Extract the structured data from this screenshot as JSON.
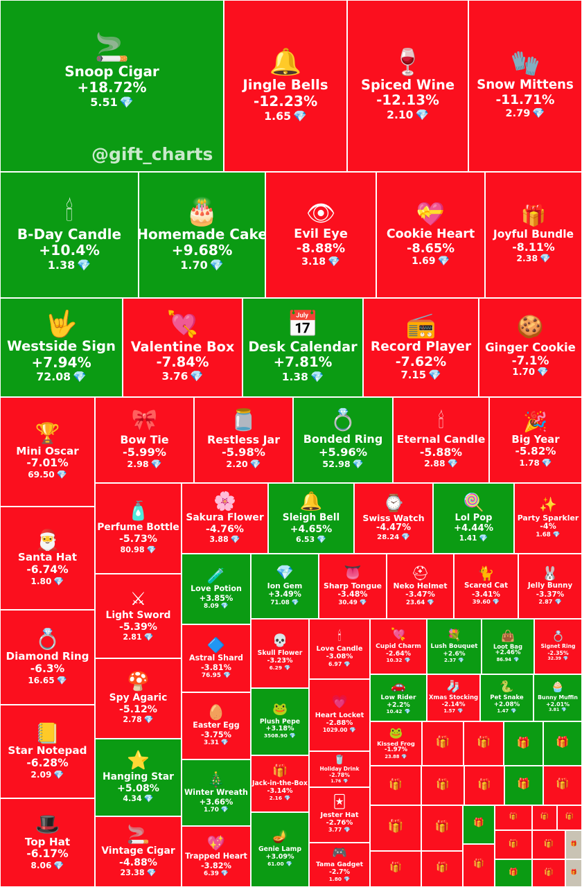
{
  "watermark": "@gift_charts",
  "colors": {
    "gain": "#0b9b13",
    "loss": "#fb0f1e"
  },
  "currency_icon": "diamond-icon",
  "chart_data": {
    "type": "treemap",
    "items": [
      {
        "name": "Snoop Cigar",
        "change": "+18.72%",
        "change_value": 18.72,
        "price": "5.51",
        "icon": "cigar-icon"
      },
      {
        "name": "Jingle Bells",
        "change": "-12.23%",
        "change_value": -12.23,
        "price": "1.65",
        "icon": "bells-icon"
      },
      {
        "name": "Spiced Wine",
        "change": "-12.13%",
        "change_value": -12.13,
        "price": "2.10",
        "icon": "wine-icon"
      },
      {
        "name": "Snow Mittens",
        "change": "-11.71%",
        "change_value": -11.71,
        "price": "2.79",
        "icon": "mittens-icon"
      },
      {
        "name": "B-Day Candle",
        "change": "+10.4%",
        "change_value": 10.4,
        "price": "1.38",
        "icon": "bday-candle-icon"
      },
      {
        "name": "Homemade Cake",
        "change": "+9.68%",
        "change_value": 9.68,
        "price": "1.70",
        "icon": "cake-icon"
      },
      {
        "name": "Evil Eye",
        "change": "-8.88%",
        "change_value": -8.88,
        "price": "3.18",
        "icon": "eye-icon"
      },
      {
        "name": "Cookie Heart",
        "change": "-8.65%",
        "change_value": -8.65,
        "price": "1.69",
        "icon": "cookie-heart-icon"
      },
      {
        "name": "Joyful Bundle",
        "change": "-8.11%",
        "change_value": -8.11,
        "price": "2.38",
        "icon": "bundle-icon"
      },
      {
        "name": "Westside Sign",
        "change": "+7.94%",
        "change_value": 7.94,
        "price": "72.08",
        "icon": "hand-sign-icon"
      },
      {
        "name": "Valentine Box",
        "change": "-7.84%",
        "change_value": -7.84,
        "price": "3.76",
        "icon": "valentine-box-icon"
      },
      {
        "name": "Desk Calendar",
        "change": "+7.81%",
        "change_value": 7.81,
        "price": "1.38",
        "icon": "calendar-icon"
      },
      {
        "name": "Record Player",
        "change": "-7.62%",
        "change_value": -7.62,
        "price": "7.15",
        "icon": "record-player-icon"
      },
      {
        "name": "Ginger Cookie",
        "change": "-7.1%",
        "change_value": -7.1,
        "price": "1.70",
        "icon": "ginger-cookie-icon"
      },
      {
        "name": "Mini Oscar",
        "change": "-7.01%",
        "change_value": -7.01,
        "price": "69.50",
        "icon": "trophy-icon"
      },
      {
        "name": "Bow Tie",
        "change": "-5.99%",
        "change_value": -5.99,
        "price": "2.98",
        "icon": "bow-tie-icon"
      },
      {
        "name": "Restless Jar",
        "change": "-5.98%",
        "change_value": -5.98,
        "price": "2.20",
        "icon": "jar-icon"
      },
      {
        "name": "Bonded Ring",
        "change": "+5.96%",
        "change_value": 5.96,
        "price": "52.98",
        "icon": "ring-icon"
      },
      {
        "name": "Eternal Candle",
        "change": "-5.88%",
        "change_value": -5.88,
        "price": "2.88",
        "icon": "candle-icon"
      },
      {
        "name": "Big Year",
        "change": "-5.82%",
        "change_value": -5.82,
        "price": "1.78",
        "icon": "big-year-icon"
      },
      {
        "name": "Santa Hat",
        "change": "-6.74%",
        "change_value": -6.74,
        "price": "1.80",
        "icon": "santa-hat-icon"
      },
      {
        "name": "Perfume Bottle",
        "change": "-5.73%",
        "change_value": -5.73,
        "price": "80.98",
        "icon": "perfume-icon"
      },
      {
        "name": "Sakura Flower",
        "change": "-4.76%",
        "change_value": -4.76,
        "price": "3.88",
        "icon": "flower-icon"
      },
      {
        "name": "Sleigh Bell",
        "change": "+4.65%",
        "change_value": 4.65,
        "price": "6.53",
        "icon": "bell-icon"
      },
      {
        "name": "Swiss Watch",
        "change": "-4.47%",
        "change_value": -4.47,
        "price": "28.24",
        "icon": "watch-icon"
      },
      {
        "name": "Lol Pop",
        "change": "+4.44%",
        "change_value": 4.44,
        "price": "1.41",
        "icon": "lollipop-icon"
      },
      {
        "name": "Party Sparkler",
        "change": "-4%",
        "change_value": -4,
        "price": "1.68",
        "icon": "sparkler-icon"
      },
      {
        "name": "Love Potion",
        "change": "+3.85%",
        "change_value": 3.85,
        "price": "8.09",
        "icon": "potion-icon"
      },
      {
        "name": "Ion Gem",
        "change": "+3.49%",
        "change_value": 3.49,
        "price": "71.08",
        "icon": "gem-icon"
      },
      {
        "name": "Sharp Tongue",
        "change": "-3.48%",
        "change_value": -3.48,
        "price": "30.49",
        "icon": "tongue-icon"
      },
      {
        "name": "Neko Helmet",
        "change": "-3.47%",
        "change_value": -3.47,
        "price": "23.64",
        "icon": "helmet-icon"
      },
      {
        "name": "Scared Cat",
        "change": "-3.41%",
        "change_value": -3.41,
        "price": "39.60",
        "icon": "cat-icon"
      },
      {
        "name": "Jelly Bunny",
        "change": "-3.37%",
        "change_value": -3.37,
        "price": "2.87",
        "icon": "bunny-icon"
      },
      {
        "name": "Diamond Ring",
        "change": "-6.3%",
        "change_value": -6.3,
        "price": "16.65",
        "icon": "diamond-ring-icon"
      },
      {
        "name": "Light Sword",
        "change": "-5.39%",
        "change_value": -5.39,
        "price": "2.81",
        "icon": "sword-icon"
      },
      {
        "name": "Astral Shard",
        "change": "-3.81%",
        "change_value": -3.81,
        "price": "76.95",
        "icon": "shard-icon"
      },
      {
        "name": "Skull Flower",
        "change": "-3.23%",
        "change_value": -3.23,
        "price": "6.29",
        "icon": "skull-flower-icon"
      },
      {
        "name": "Love Candle",
        "change": "-3.08%",
        "change_value": -3.08,
        "price": "6.97",
        "icon": "love-candle-icon"
      },
      {
        "name": "Cupid Charm",
        "change": "-2.64%",
        "change_value": -2.64,
        "price": "10.32",
        "icon": "cupid-icon"
      },
      {
        "name": "Lush Bouquet",
        "change": "+2.6%",
        "change_value": 2.6,
        "price": "2.37",
        "icon": "bouquet-icon"
      },
      {
        "name": "Loot Bag",
        "change": "+2.46%",
        "change_value": 2.46,
        "price": "86.94",
        "icon": "bag-icon"
      },
      {
        "name": "Signet Ring",
        "change": "-2.35%",
        "change_value": -2.35,
        "price": "32.39",
        "icon": "signet-icon"
      },
      {
        "name": "Spy Agaric",
        "change": "-5.12%",
        "change_value": -5.12,
        "price": "2.78",
        "icon": "mushroom-icon"
      },
      {
        "name": "Low Rider",
        "change": "+2.2%",
        "change_value": 2.2,
        "price": "10.42",
        "icon": "car-icon"
      },
      {
        "name": "Xmas Stocking",
        "change": "-2.14%",
        "change_value": -2.14,
        "price": "1.57",
        "icon": "stocking-icon"
      },
      {
        "name": "Pet Snake",
        "change": "+2.08%",
        "change_value": 2.08,
        "price": "1.47",
        "icon": "snake-icon"
      },
      {
        "name": "Bunny Muffin",
        "change": "+2.01%",
        "change_value": 2.01,
        "price": "3.81",
        "icon": "muffin-icon"
      },
      {
        "name": "Star Notepad",
        "change": "-6.28%",
        "change_value": -6.28,
        "price": "2.09",
        "icon": "notepad-icon"
      },
      {
        "name": "Easter Egg",
        "change": "-3.75%",
        "change_value": -3.75,
        "price": "3.31",
        "icon": "egg-icon"
      },
      {
        "name": "Plush Pepe",
        "change": "+3.18%",
        "change_value": 3.18,
        "price": "3508.90",
        "icon": "pepe-icon"
      },
      {
        "name": "Heart Locket",
        "change": "-2.88%",
        "change_value": -2.88,
        "price": "1029.00",
        "icon": "locket-icon"
      },
      {
        "name": "Kissed Frog",
        "change": "-1.97%",
        "change_value": -1.97,
        "price": "23.88",
        "icon": "frog-icon"
      },
      {
        "name": "Hanging Star",
        "change": "+5.08%",
        "change_value": 5.08,
        "price": "4.34",
        "icon": "star-icon"
      },
      {
        "name": "Holiday Drink",
        "change": "-2.78%",
        "change_value": -2.78,
        "price": "1.76",
        "icon": "drink-icon"
      },
      {
        "name": "Winter Wreath",
        "change": "+3.66%",
        "change_value": 3.66,
        "price": "1.70",
        "icon": "wreath-icon"
      },
      {
        "name": "Jack-in-the-Box",
        "change": "-3.14%",
        "change_value": -3.14,
        "price": "2.16",
        "icon": "jack-box-icon"
      },
      {
        "name": "Top Hat",
        "change": "-6.17%",
        "change_value": -6.17,
        "price": "8.06",
        "icon": "top-hat-icon"
      },
      {
        "name": "Vintage Cigar",
        "change": "-4.88%",
        "change_value": -4.88,
        "price": "23.38",
        "icon": "vintage-cigar-icon"
      },
      {
        "name": "Trapped Heart",
        "change": "-3.82%",
        "change_value": -3.82,
        "price": "6.39",
        "icon": "trapped-heart-icon"
      },
      {
        "name": "Genie Lamp",
        "change": "+3.09%",
        "change_value": 3.09,
        "price": "61.00",
        "icon": "lamp-icon"
      },
      {
        "name": "Jester Hat",
        "change": "-2.76%",
        "change_value": -2.76,
        "price": "3.77",
        "icon": "jester-icon"
      },
      {
        "name": "Tama Gadget",
        "change": "-2.7%",
        "change_value": -2.7,
        "price": "1.80",
        "icon": "gadget-icon"
      }
    ]
  }
}
